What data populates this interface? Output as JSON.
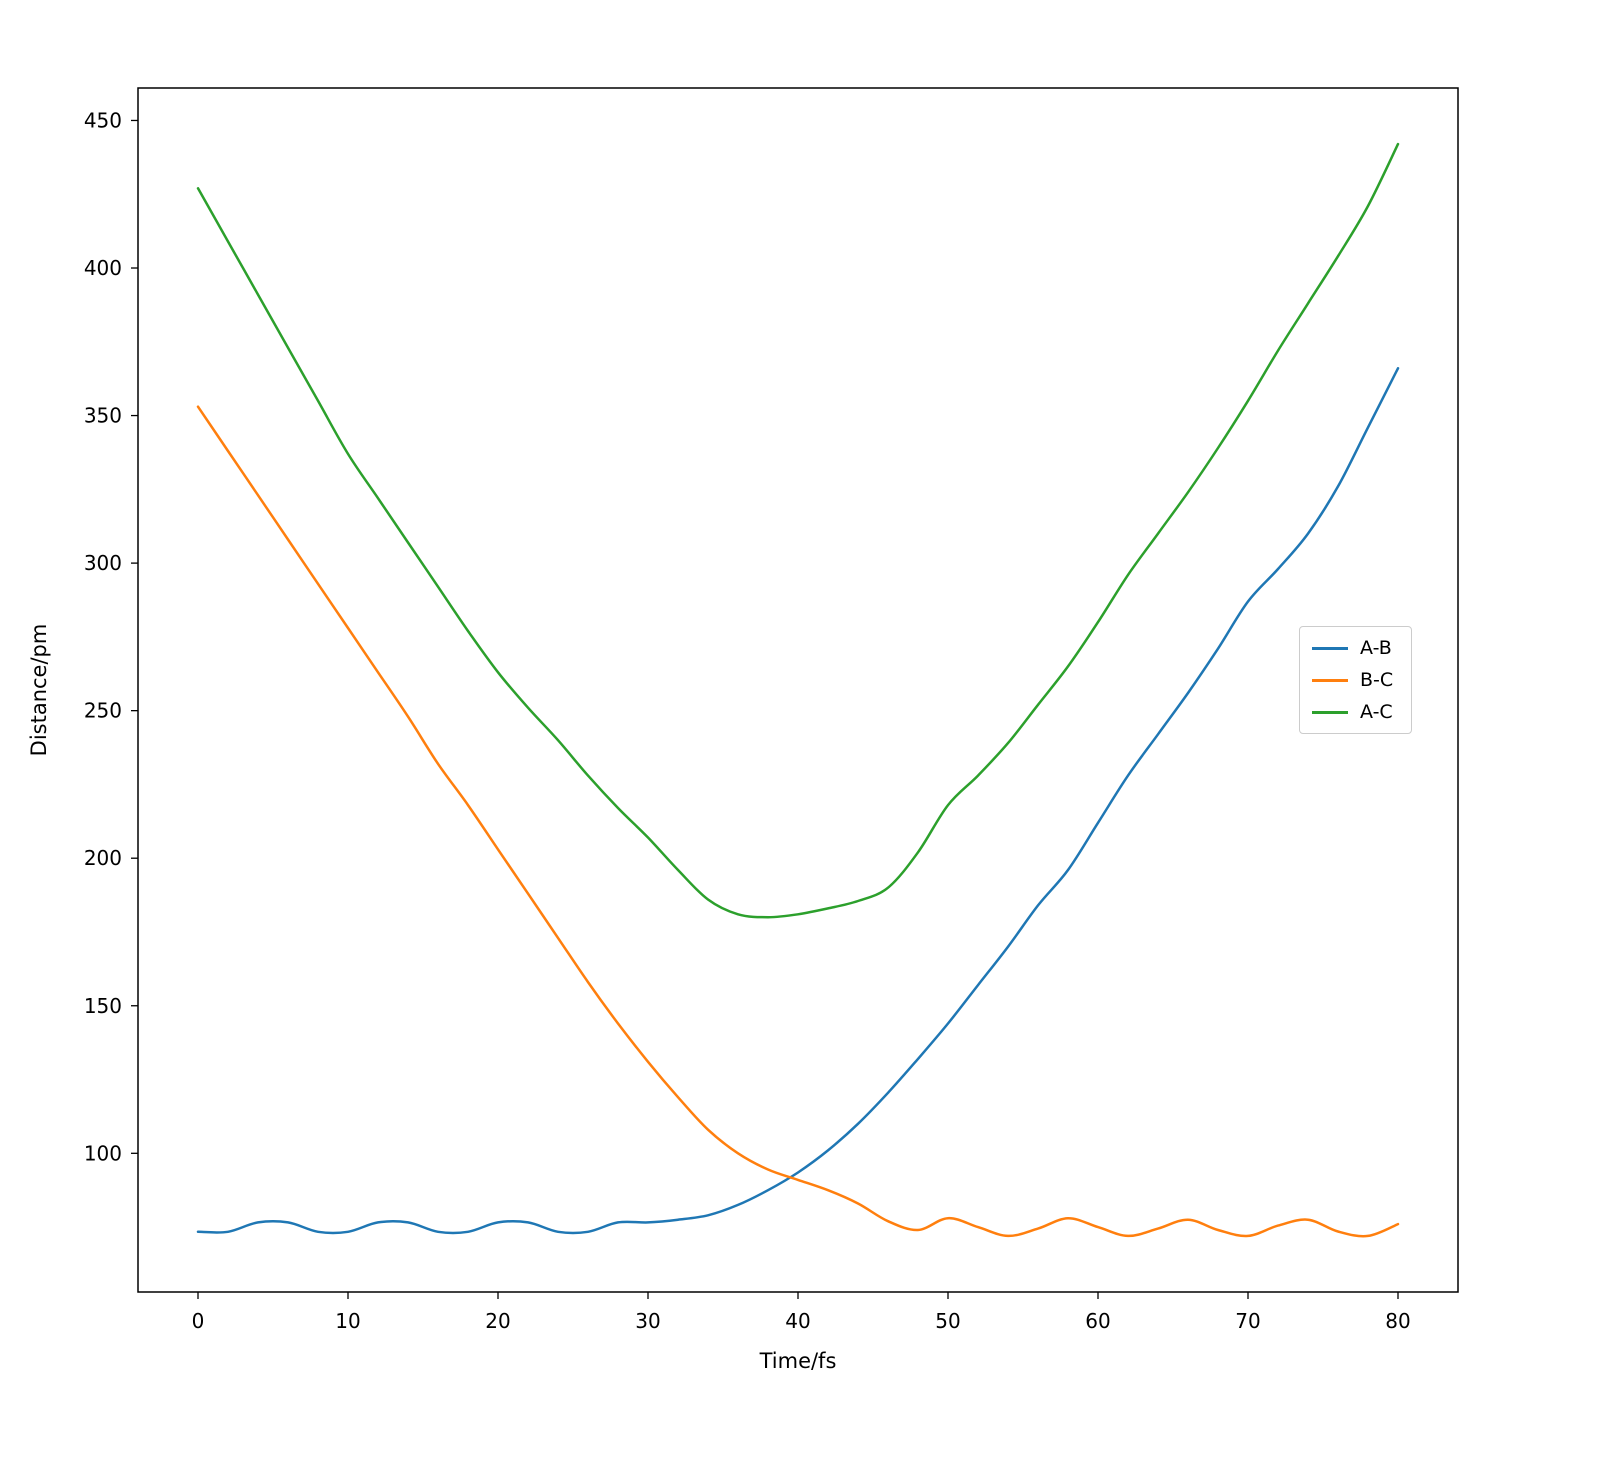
{
  "figure": {
    "background": "#ffffff"
  },
  "chart_data": {
    "type": "line",
    "title": "",
    "xlabel": "Time/fs",
    "ylabel": "Distance/pm",
    "xlim": [
      -4,
      84
    ],
    "ylim": [
      53,
      461
    ],
    "xticks": [
      0,
      10,
      20,
      30,
      40,
      50,
      60,
      70,
      80
    ],
    "yticks": [
      100,
      150,
      200,
      250,
      300,
      350,
      400,
      450
    ],
    "grid": false,
    "legend": {
      "position": "center-right",
      "labels": [
        "A-B",
        "B-C",
        "A-C"
      ]
    },
    "x": [
      0,
      2,
      4,
      6,
      8,
      10,
      12,
      14,
      16,
      18,
      20,
      22,
      24,
      26,
      28,
      30,
      32,
      34,
      36,
      38,
      40,
      42,
      44,
      46,
      48,
      50,
      52,
      54,
      56,
      58,
      60,
      62,
      64,
      66,
      68,
      70,
      72,
      74,
      76,
      78,
      80
    ],
    "series": [
      {
        "name": "A-B",
        "color": "#1f77b4",
        "values": [
          73.4,
          73.4,
          76.6,
          76.6,
          73.4,
          73.4,
          76.6,
          76.6,
          73.4,
          73.4,
          76.6,
          76.6,
          73.4,
          73.4,
          76.6,
          76.6,
          77.5,
          79,
          82.5,
          87.5,
          93.5,
          101,
          110,
          120.5,
          132,
          144,
          157,
          170,
          184,
          196,
          212,
          228,
          242,
          256,
          271,
          287,
          298,
          310,
          326,
          346,
          366
        ]
      },
      {
        "name": "B-C",
        "color": "#ff7f0e",
        "values": [
          353,
          338,
          323,
          308,
          293,
          278,
          263,
          248,
          232,
          218,
          203,
          188,
          173,
          158,
          144,
          131,
          119,
          108,
          100,
          94.5,
          91,
          87.5,
          83,
          77,
          74,
          78,
          75,
          72,
          74.5,
          78,
          75,
          72,
          74.5,
          77.5,
          74,
          72,
          75.5,
          77.5,
          73.5,
          72,
          76
        ]
      },
      {
        "name": "A-C",
        "color": "#2ca02c",
        "values": [
          427,
          409,
          391,
          373,
          355,
          337,
          322,
          307,
          292,
          277,
          263,
          251,
          240,
          228,
          217,
          207,
          196,
          186,
          181,
          180,
          181,
          183,
          185.5,
          190,
          202,
          218,
          228,
          239,
          252,
          265,
          280,
          296,
          310,
          324,
          339,
          355,
          372,
          388,
          404,
          421,
          442
        ]
      }
    ]
  }
}
